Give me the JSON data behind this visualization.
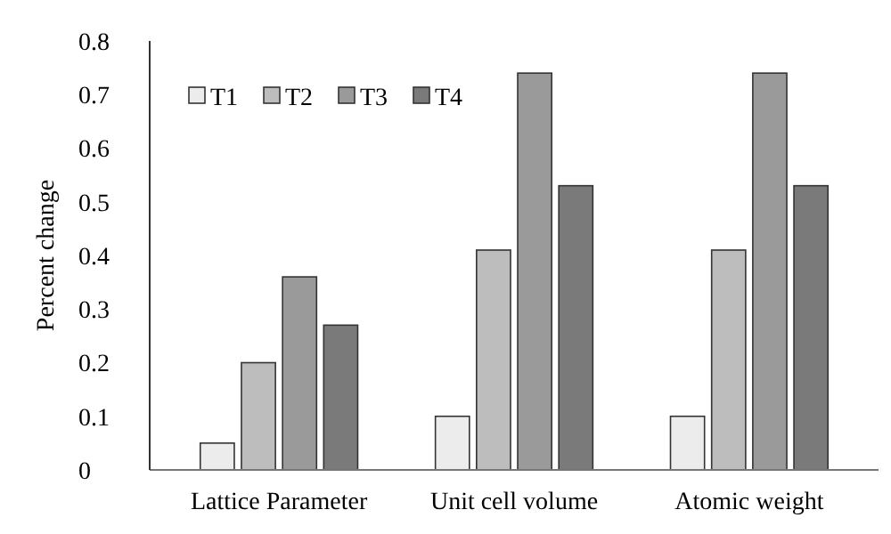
{
  "chart_data": {
    "type": "bar",
    "ylabel": "Percent change",
    "categories": [
      "Lattice Parameter",
      "Unit cell volume",
      "Atomic weight"
    ],
    "series": [
      {
        "name": "T1",
        "color": "#ececec",
        "values": [
          0.05,
          0.1,
          0.1
        ]
      },
      {
        "name": "T2",
        "color": "#bdbdbd",
        "values": [
          0.2,
          0.41,
          0.41
        ]
      },
      {
        "name": "T3",
        "color": "#9a9a9a",
        "values": [
          0.36,
          0.74,
          0.74
        ]
      },
      {
        "name": "T4",
        "color": "#7a7a7a",
        "values": [
          0.27,
          0.53,
          0.53
        ]
      }
    ],
    "ylim": [
      0,
      0.8
    ],
    "yticks": [
      0,
      0.1,
      0.2,
      0.3,
      0.4,
      0.5,
      0.6,
      0.7,
      0.8
    ],
    "grid": false,
    "legend": "top left"
  }
}
